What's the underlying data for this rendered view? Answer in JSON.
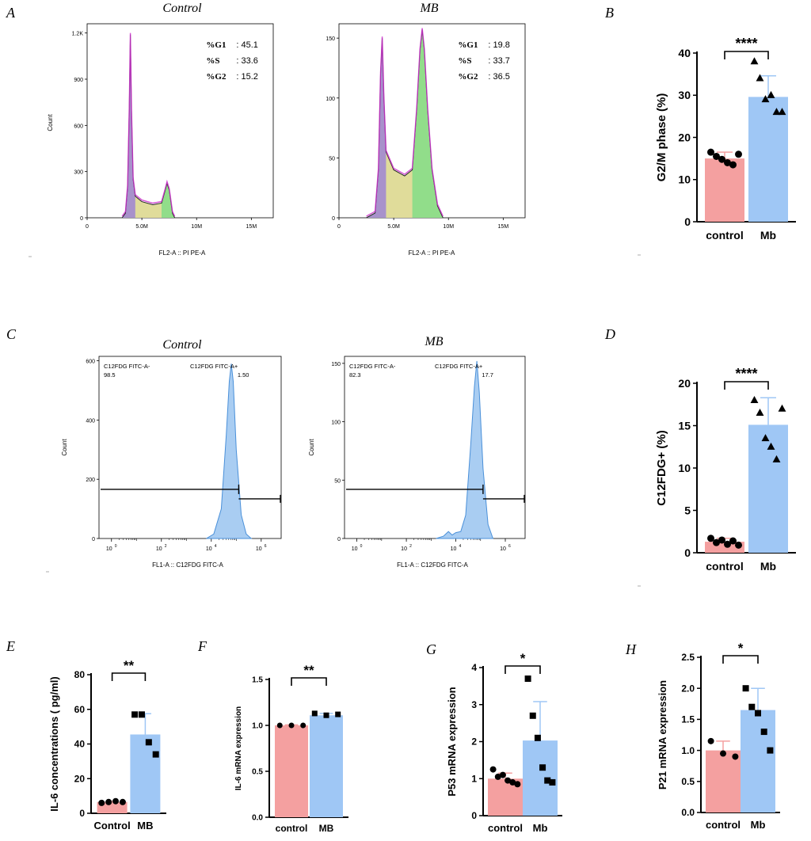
{
  "panel_letters": [
    "A",
    "B",
    "C",
    "D",
    "E",
    "F",
    "G",
    "H"
  ],
  "chart_data": [
    {
      "id": "A1",
      "type": "histogram",
      "title": "Control",
      "xlabel": "FL2-A :: PI PE-A",
      "ylabel": "Count",
      "xticks": [
        "0",
        "5.0M",
        "10M",
        "15M"
      ],
      "xtick_values": [
        0,
        5,
        10,
        15
      ],
      "yticks": [
        "0",
        "300",
        "600",
        "900",
        "1.2K"
      ],
      "ytick_values": [
        0,
        300,
        600,
        900,
        1200
      ],
      "xlim": [
        0,
        17
      ],
      "ylim": [
        0,
        1260
      ],
      "stats": [
        {
          "label": "%G1",
          "value": "45.1"
        },
        {
          "label": "%S",
          "value": "33.6"
        },
        {
          "label": "%G2",
          "value": "15.2"
        }
      ],
      "curve": [
        [
          3.2,
          0
        ],
        [
          3.5,
          30
        ],
        [
          3.7,
          200
        ],
        [
          3.85,
          700
        ],
        [
          3.95,
          1190
        ],
        [
          4.05,
          700
        ],
        [
          4.2,
          250
        ],
        [
          4.4,
          140
        ],
        [
          5.0,
          105
        ],
        [
          6.0,
          85
        ],
        [
          6.8,
          95
        ],
        [
          7.1,
          170
        ],
        [
          7.3,
          225
        ],
        [
          7.5,
          180
        ],
        [
          7.8,
          30
        ],
        [
          8.0,
          0
        ]
      ]
    },
    {
      "id": "A2",
      "type": "histogram",
      "title": "MB",
      "xlabel": "FL2-A :: PI PE-A",
      "ylabel": "Count",
      "xticks": [
        "0",
        "5.0M",
        "10M",
        "15M"
      ],
      "xtick_values": [
        0,
        5,
        10,
        15
      ],
      "yticks": [
        "0",
        "50",
        "100",
        "150"
      ],
      "ytick_values": [
        0,
        50,
        100,
        150
      ],
      "xlim": [
        0,
        17
      ],
      "ylim": [
        0,
        162
      ],
      "stats": [
        {
          "label": "%G1",
          "value": "19.8"
        },
        {
          "label": "%S",
          "value": "33.7"
        },
        {
          "label": "%G2",
          "value": "36.5"
        }
      ],
      "curve": [
        [
          2.5,
          0
        ],
        [
          3.3,
          4
        ],
        [
          3.6,
          40
        ],
        [
          3.8,
          120
        ],
        [
          3.95,
          150
        ],
        [
          4.1,
          100
        ],
        [
          4.3,
          55
        ],
        [
          5.0,
          40
        ],
        [
          6.0,
          35
        ],
        [
          6.7,
          40
        ],
        [
          7.1,
          90
        ],
        [
          7.4,
          140
        ],
        [
          7.6,
          157
        ],
        [
          7.8,
          140
        ],
        [
          8.1,
          90
        ],
        [
          8.5,
          40
        ],
        [
          9.0,
          10
        ],
        [
          9.5,
          0
        ]
      ]
    },
    {
      "id": "B",
      "type": "bar",
      "xlabel": "",
      "ylabel": "G2/M phase (%)",
      "categories": [
        "control",
        "Mb"
      ],
      "values": [
        15.0,
        29.6
      ],
      "errors": [
        1.5,
        5.0
      ],
      "points": [
        [
          16.5,
          15.5,
          14.8,
          14.0,
          13.5,
          16.0
        ],
        [
          38,
          34,
          29,
          30,
          26,
          26
        ]
      ],
      "markers": [
        "circle",
        "triangle"
      ],
      "yticks": [
        "0",
        "10",
        "20",
        "30",
        "40"
      ],
      "ytick_values": [
        0,
        10,
        20,
        30,
        40
      ],
      "ylim": [
        0,
        40
      ],
      "significance": "****"
    },
    {
      "id": "C1",
      "type": "histogram",
      "title": "Control",
      "xlabel": "FL1-A :: C12FDG FITC-A",
      "ylabel": "Count",
      "xtick_exponents": [
        "0",
        "2",
        "4",
        "6"
      ],
      "xtick_base": "10",
      "yticks": [
        "0",
        "200",
        "400",
        "600"
      ],
      "ytick_values": [
        0,
        200,
        400,
        600
      ],
      "xlim": [
        -0.5,
        6.8
      ],
      "ylim": [
        0,
        615
      ],
      "gates": [
        {
          "label": "C12FDG FITC-A-",
          "value": "98.5"
        },
        {
          "label": "C12FDG FITC-A+",
          "value": "1.50"
        }
      ],
      "curve": [
        [
          3.8,
          0
        ],
        [
          4.1,
          15
        ],
        [
          4.4,
          100
        ],
        [
          4.6,
          350
        ],
        [
          4.72,
          530
        ],
        [
          4.8,
          590
        ],
        [
          4.88,
          530
        ],
        [
          5.0,
          300
        ],
        [
          5.2,
          80
        ],
        [
          5.4,
          15
        ],
        [
          5.6,
          0
        ]
      ]
    },
    {
      "id": "C2",
      "type": "histogram",
      "title": "MB",
      "xlabel": "FL1-A :: C12FDG FITC-A",
      "ylabel": "Count",
      "xtick_exponents": [
        "0",
        "2",
        "4",
        "6"
      ],
      "xtick_base": "10",
      "yticks": [
        "0",
        "50",
        "100",
        "150"
      ],
      "ytick_values": [
        0,
        50,
        100,
        150
      ],
      "xlim": [
        -0.5,
        6.8
      ],
      "ylim": [
        0,
        156
      ],
      "gates": [
        {
          "label": "C12FDG FITC-A-",
          "value": "82.3"
        },
        {
          "label": "C12FDG FITC-A+",
          "value": "17.7"
        }
      ],
      "curve": [
        [
          3.2,
          0
        ],
        [
          3.5,
          2
        ],
        [
          3.7,
          6
        ],
        [
          3.85,
          3
        ],
        [
          4.0,
          5
        ],
        [
          4.2,
          6
        ],
        [
          4.4,
          20
        ],
        [
          4.6,
          80
        ],
        [
          4.75,
          130
        ],
        [
          4.85,
          152
        ],
        [
          4.95,
          125
        ],
        [
          5.1,
          60
        ],
        [
          5.3,
          12
        ],
        [
          5.5,
          0
        ]
      ]
    },
    {
      "id": "D",
      "type": "bar",
      "xlabel": "",
      "ylabel": "C12FDG+ (%)",
      "categories": [
        "control",
        "Mb"
      ],
      "values": [
        1.3,
        15.1
      ],
      "errors": [
        0.4,
        3.2
      ],
      "points": [
        [
          1.7,
          1.2,
          1.5,
          1.0,
          1.4,
          0.9
        ],
        [
          18,
          16.5,
          13.5,
          12.5,
          11,
          17
        ]
      ],
      "markers": [
        "circle",
        "triangle"
      ],
      "yticks": [
        "0",
        "5",
        "10",
        "15",
        "20"
      ],
      "ytick_values": [
        0,
        5,
        10,
        15,
        20
      ],
      "ylim": [
        0,
        20
      ],
      "significance": "****"
    },
    {
      "id": "E",
      "type": "bar",
      "xlabel": "",
      "ylabel": "IL-6 concentrations ( pg/ml)",
      "categories": [
        "Control",
        "MB"
      ],
      "values": [
        6.5,
        45.5
      ],
      "errors": [
        0.5,
        12
      ],
      "points": [
        [
          6,
          6.5,
          7,
          6.5
        ],
        [
          57,
          57,
          41,
          34
        ]
      ],
      "markers": [
        "circle",
        "square"
      ],
      "yticks": [
        "0",
        "20",
        "40",
        "60",
        "80"
      ],
      "ytick_values": [
        0,
        20,
        40,
        60,
        80
      ],
      "ylim": [
        0,
        80
      ],
      "significance": "**"
    },
    {
      "id": "F",
      "type": "bar",
      "xlabel": "",
      "ylabel": "IL-6 mRNA expression",
      "categories": [
        "control",
        "MB"
      ],
      "values": [
        1.0,
        1.11
      ],
      "errors": [
        0.005,
        0.02
      ],
      "points": [
        [
          1.0,
          1.0,
          1.0
        ],
        [
          1.13,
          1.11,
          1.12
        ]
      ],
      "markers": [
        "circle",
        "square"
      ],
      "yticks": [
        "0.0",
        "0.5",
        "1.0",
        "1.5"
      ],
      "ytick_values": [
        0,
        0.5,
        1.0,
        1.5
      ],
      "ylim": [
        0,
        1.5
      ],
      "significance": "**"
    },
    {
      "id": "G",
      "type": "bar",
      "xlabel": "",
      "ylabel": "P53 mRNA expression",
      "categories": [
        "control",
        "Mb"
      ],
      "values": [
        1.0,
        2.03
      ],
      "errors": [
        0.15,
        1.05
      ],
      "points": [
        [
          1.25,
          1.05,
          1.1,
          0.95,
          0.9,
          0.85
        ],
        [
          3.7,
          2.7,
          2.1,
          1.3,
          0.95,
          0.9
        ]
      ],
      "markers": [
        "circle",
        "square"
      ],
      "yticks": [
        "0",
        "1",
        "2",
        "3",
        "4"
      ],
      "ytick_values": [
        0,
        1,
        2,
        3,
        4
      ],
      "ylim": [
        0,
        4
      ],
      "significance": "*"
    },
    {
      "id": "H",
      "type": "bar",
      "xlabel": "",
      "ylabel": "P21 mRNA expression",
      "categories": [
        "control",
        "Mb"
      ],
      "values": [
        1.0,
        1.65
      ],
      "errors": [
        0.15,
        0.35
      ],
      "points": [
        [
          1.15,
          0.95,
          0.9
        ],
        [
          2.0,
          1.7,
          1.6,
          1.3,
          1.0
        ]
      ],
      "markers": [
        "circle",
        "square"
      ],
      "yticks": [
        "0.0",
        "0.5",
        "1.0",
        "1.5",
        "2.0",
        "2.5"
      ],
      "ytick_values": [
        0,
        0.5,
        1.0,
        1.5,
        2.0,
        2.5
      ],
      "ylim": [
        0,
        2.5
      ],
      "significance": "*"
    }
  ],
  "colors": {
    "control_bar": "#f4a0a0",
    "treated_bar": "#9fc7f5",
    "purple": "#cc33cc",
    "g1": "#a28ad0",
    "s": "#e0dc9a",
    "g2": "#88dd88",
    "flow_fill": "#a9cdf2",
    "flow_line": "#4a90d9"
  }
}
